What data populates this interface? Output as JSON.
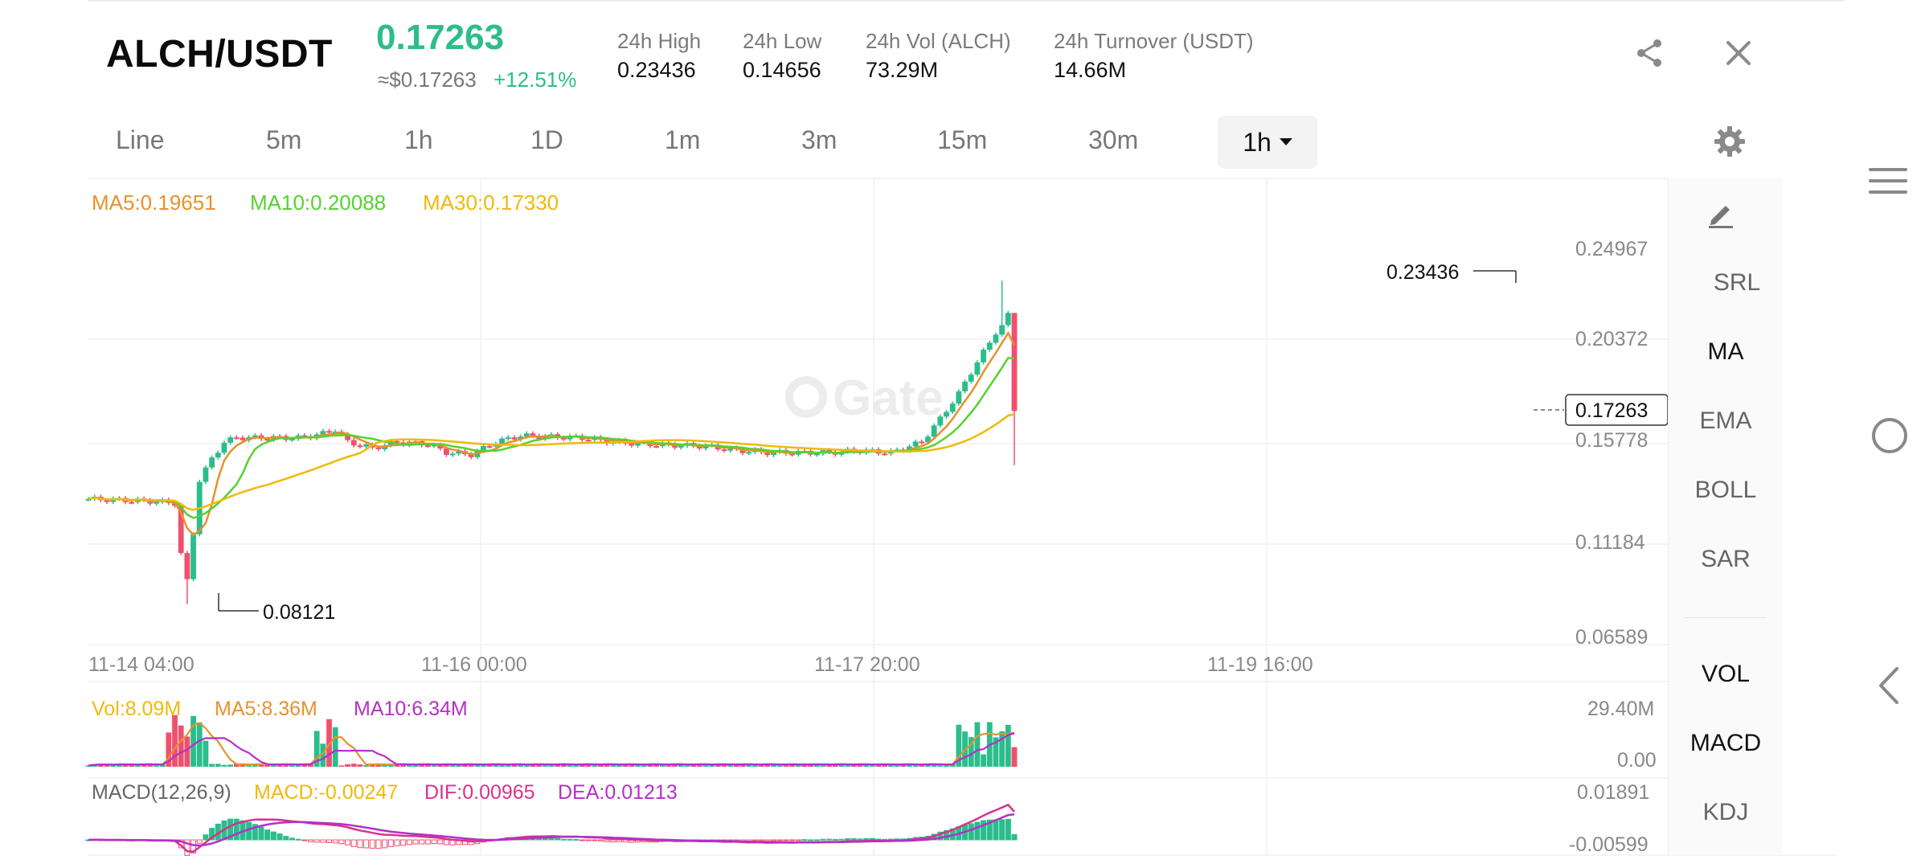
{
  "header": {
    "pair": "ALCH/USDT",
    "price": "0.17263",
    "approx_price": "≈$0.17263",
    "change": "+12.51%",
    "stats": [
      {
        "label": "24h High",
        "value": "0.23436"
      },
      {
        "label": "24h Low",
        "value": "0.14656"
      },
      {
        "label": "24h Vol (ALCH)",
        "value": "73.29M"
      },
      {
        "label": "24h Turnover (USDT)",
        "value": "14.66M"
      }
    ],
    "share_icon": "share-icon",
    "close_icon": "close-icon"
  },
  "timeframes": [
    "Line",
    "5m",
    "1h",
    "1D",
    "1m",
    "3m",
    "15m",
    "30m"
  ],
  "active_timeframe": "1h",
  "main_legend": {
    "ma5": "MA5:0.19651",
    "ma10": "MA10:0.20088",
    "ma30": "MA30:0.17330"
  },
  "watermark": "Gate",
  "price_axis": [
    "0.24967",
    "0.20372",
    "0.15778",
    "0.11184",
    "0.06589"
  ],
  "time_axis": [
    "11-14 04:00",
    "11-16 00:00",
    "11-17 20:00",
    "11-19 16:00"
  ],
  "annotations": {
    "high": "0.23436",
    "low": "0.08121",
    "current": "0.17263"
  },
  "volume_legend": {
    "vol": "Vol:8.09M",
    "ma5": "MA5:8.36M",
    "ma10": "MA10:6.34M"
  },
  "volume_axis": [
    "29.40M",
    "0.00"
  ],
  "macd_legend": {
    "name": "MACD(12,26,9)",
    "macd": "MACD:-0.00247",
    "dif": "DIF:0.00965",
    "dea": "DEA:0.01213"
  },
  "macd_axis": [
    "0.01891",
    "-0.00599"
  ],
  "indicators_main": [
    "SRL",
    "MA",
    "EMA",
    "BOLL",
    "SAR"
  ],
  "indicators_main_active": [
    "MA"
  ],
  "indicators_sub": [
    "VOL",
    "MACD",
    "KDJ"
  ],
  "indicators_sub_active": [
    "VOL",
    "MACD"
  ],
  "colors": {
    "up": "#2bbd8c",
    "down": "#f0506e",
    "ma5": "#e8912d",
    "ma10": "#57d12f",
    "ma30": "#f0b90b",
    "purple": "#b52fc8",
    "magenta": "#d8328f"
  },
  "system_nav": [
    "menu-icon",
    "home-circle-icon",
    "back-icon"
  ]
}
